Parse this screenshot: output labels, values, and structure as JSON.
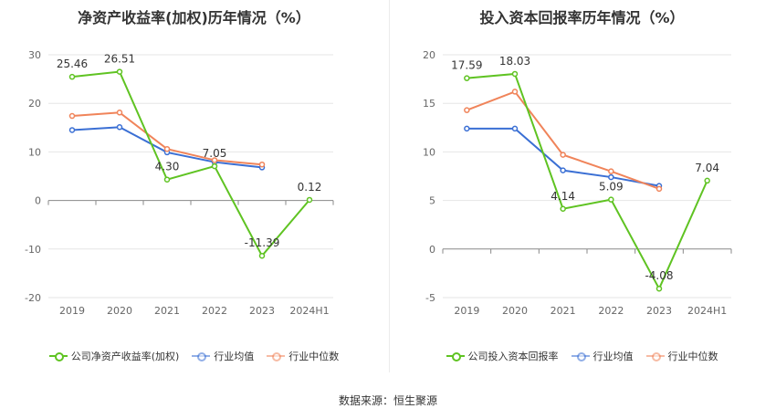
{
  "source_text": "数据来源：恒生聚源",
  "chart_data": [
    {
      "type": "line",
      "title": "净资产收益率(加权)历年情况（%）",
      "categories": [
        "2019",
        "2020",
        "2021",
        "2022",
        "2023",
        "2024H1"
      ],
      "ylim": [
        -20,
        30
      ],
      "yticks": [
        -20,
        -10,
        0,
        10,
        20,
        30
      ],
      "grid": true,
      "legend_position": "bottom",
      "series": [
        {
          "name": "公司净资产收益率(加权)",
          "color": "#5fc322",
          "values": [
            25.46,
            26.51,
            4.3,
            7.05,
            -11.39,
            0.12
          ],
          "labels": [
            "25.46",
            "26.51",
            "4.30",
            "7.05",
            "-11.39",
            "0.12"
          ]
        },
        {
          "name": "行业均值",
          "color": "#3a6fd4",
          "values": [
            14.5,
            15.1,
            9.9,
            7.9,
            6.8,
            null
          ]
        },
        {
          "name": "行业中位数",
          "color": "#f0845a",
          "values": [
            17.4,
            18.1,
            10.6,
            8.3,
            7.4,
            null
          ]
        }
      ]
    },
    {
      "type": "line",
      "title": "投入资本回报率历年情况（%）",
      "categories": [
        "2019",
        "2020",
        "2021",
        "2022",
        "2023",
        "2024H1"
      ],
      "ylim": [
        -5,
        20
      ],
      "yticks": [
        -5,
        0,
        5,
        10,
        15,
        20
      ],
      "grid": true,
      "legend_position": "bottom",
      "series": [
        {
          "name": "公司投入资本回报率",
          "color": "#5fc322",
          "values": [
            17.59,
            18.03,
            4.14,
            5.09,
            -4.08,
            7.04
          ],
          "labels": [
            "17.59",
            "18.03",
            "4.14",
            "5.09",
            "-4.08",
            "7.04"
          ]
        },
        {
          "name": "行业均值",
          "color": "#3a6fd4",
          "values": [
            12.4,
            12.4,
            8.1,
            7.4,
            6.5,
            null
          ]
        },
        {
          "name": "行业中位数",
          "color": "#f0845a",
          "values": [
            14.3,
            16.2,
            9.7,
            8.0,
            6.2,
            null
          ]
        }
      ]
    }
  ]
}
